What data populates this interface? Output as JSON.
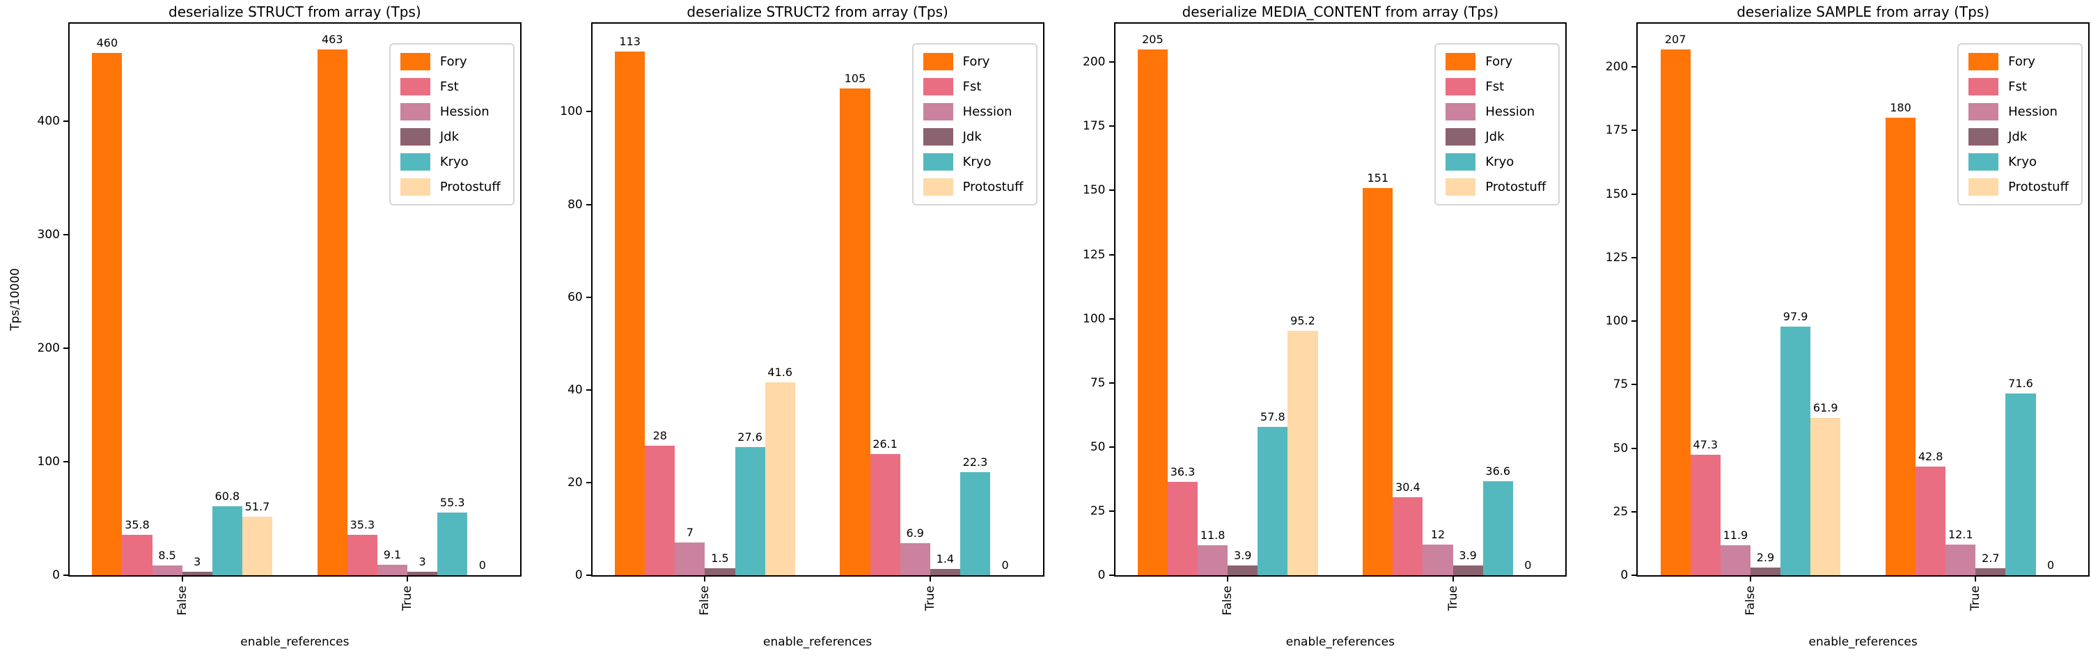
{
  "figure": {
    "ylabel": "Tps/10000",
    "xlabel": "enable_references",
    "categories": [
      "False",
      "True"
    ],
    "series_names": [
      "Fory",
      "Fst",
      "Hession",
      "Jdk",
      "Kryo",
      "Protostuff"
    ],
    "colors": {
      "fory": "#ff7508",
      "fst": "#e96e82",
      "hession": "#ca829e",
      "jdk": "#8b6370",
      "kryo": "#54b9bf",
      "protostuff": "#ffd9a7",
      "text": "#000000",
      "spine": "#000000",
      "legend_border": "#d5d5d5",
      "background": "#ffffff"
    }
  },
  "chart_data": [
    {
      "type": "bar",
      "title": "deserialize STRUCT from array (Tps)",
      "xlabel": "enable_references",
      "ylabel": "Tps/10000",
      "categories": [
        "False",
        "True"
      ],
      "series": [
        {
          "name": "Fory",
          "color": "#ff7508",
          "values": [
            460,
            463
          ]
        },
        {
          "name": "Fst",
          "color": "#e96e82",
          "values": [
            35.8,
            35.3
          ]
        },
        {
          "name": "Hession",
          "color": "#ca829e",
          "values": [
            8.5,
            9.1
          ]
        },
        {
          "name": "Jdk",
          "color": "#8b6370",
          "values": [
            3,
            3
          ]
        },
        {
          "name": "Kryo",
          "color": "#54b9bf",
          "values": [
            60.8,
            55.3
          ]
        },
        {
          "name": "Protostuff",
          "color": "#ffd9a7",
          "values": [
            51.7,
            0
          ]
        }
      ],
      "ylim": [
        0,
        486
      ],
      "yticks": [
        0,
        100,
        200,
        300,
        400
      ],
      "legend_position": "upper right",
      "grid": false
    },
    {
      "type": "bar",
      "title": "deserialize STRUCT2 from array (Tps)",
      "xlabel": "enable_references",
      "ylabel": "",
      "categories": [
        "False",
        "True"
      ],
      "series": [
        {
          "name": "Fory",
          "color": "#ff7508",
          "values": [
            113,
            105
          ]
        },
        {
          "name": "Fst",
          "color": "#e96e82",
          "values": [
            28,
            26.1
          ]
        },
        {
          "name": "Hession",
          "color": "#ca829e",
          "values": [
            7,
            6.9
          ]
        },
        {
          "name": "Jdk",
          "color": "#8b6370",
          "values": [
            1.5,
            1.4
          ]
        },
        {
          "name": "Kryo",
          "color": "#54b9bf",
          "values": [
            27.6,
            22.3
          ]
        },
        {
          "name": "Protostuff",
          "color": "#ffd9a7",
          "values": [
            41.6,
            0
          ]
        }
      ],
      "ylim": [
        0,
        119
      ],
      "yticks": [
        0,
        20,
        40,
        60,
        80,
        100
      ],
      "legend_position": "upper right",
      "grid": false
    },
    {
      "type": "bar",
      "title": "deserialize MEDIA_CONTENT from array (Tps)",
      "xlabel": "enable_references",
      "ylabel": "",
      "categories": [
        "False",
        "True"
      ],
      "series": [
        {
          "name": "Fory",
          "color": "#ff7508",
          "values": [
            205,
            151
          ]
        },
        {
          "name": "Fst",
          "color": "#e96e82",
          "values": [
            36.3,
            30.4
          ]
        },
        {
          "name": "Hession",
          "color": "#ca829e",
          "values": [
            11.8,
            12
          ]
        },
        {
          "name": "Jdk",
          "color": "#8b6370",
          "values": [
            3.9,
            3.9
          ]
        },
        {
          "name": "Kryo",
          "color": "#54b9bf",
          "values": [
            57.8,
            36.6
          ]
        },
        {
          "name": "Protostuff",
          "color": "#ffd9a7",
          "values": [
            95.2,
            0
          ]
        }
      ],
      "ylim": [
        0,
        215
      ],
      "yticks": [
        0,
        25,
        50,
        75,
        100,
        125,
        150,
        175,
        200
      ],
      "legend_position": "upper right",
      "grid": false
    },
    {
      "type": "bar",
      "title": "deserialize SAMPLE from array (Tps)",
      "xlabel": "enable_references",
      "ylabel": "",
      "categories": [
        "False",
        "True"
      ],
      "series": [
        {
          "name": "Fory",
          "color": "#ff7508",
          "values": [
            207,
            180
          ]
        },
        {
          "name": "Fst",
          "color": "#e96e82",
          "values": [
            47.3,
            42.8
          ]
        },
        {
          "name": "Hession",
          "color": "#ca829e",
          "values": [
            11.9,
            12.1
          ]
        },
        {
          "name": "Jdk",
          "color": "#8b6370",
          "values": [
            2.9,
            2.7
          ]
        },
        {
          "name": "Kryo",
          "color": "#54b9bf",
          "values": [
            97.9,
            71.6
          ]
        },
        {
          "name": "Protostuff",
          "color": "#ffd9a7",
          "values": [
            61.9,
            0
          ]
        }
      ],
      "ylim": [
        0,
        217
      ],
      "yticks": [
        0,
        25,
        50,
        75,
        100,
        125,
        150,
        175,
        200
      ],
      "legend_position": "upper right",
      "grid": false
    }
  ]
}
